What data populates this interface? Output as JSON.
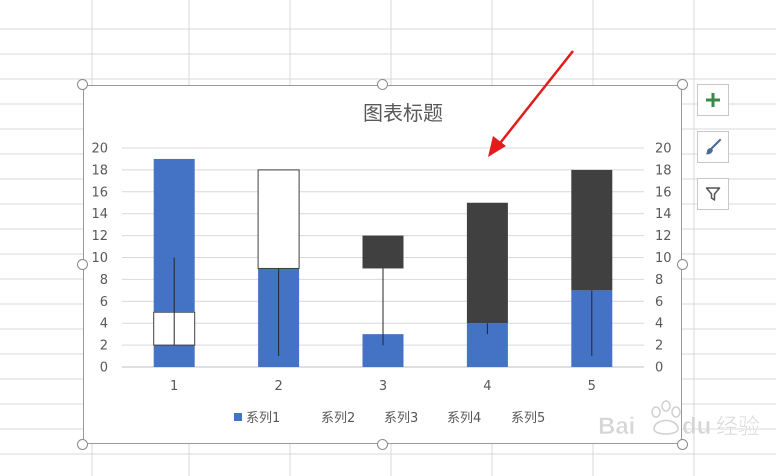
{
  "chart_data": {
    "type": "bar",
    "subtype": "stacked-with-error-bars",
    "title": "图表标题",
    "categories": [
      "1",
      "2",
      "3",
      "4",
      "5"
    ],
    "ylim": [
      0,
      20
    ],
    "yticks": [
      "0",
      "2",
      "4",
      "6",
      "8",
      "10",
      "12",
      "14",
      "16",
      "18",
      "20"
    ],
    "secondary_axis": true,
    "grid": true,
    "legend": {
      "placement": "bottom",
      "entries": [
        "系列1",
        "系列2",
        "系列3",
        "系列4",
        "系列5"
      ],
      "visible_swatch": [
        "系列1"
      ]
    },
    "series_colors": {
      "blue": "#4472c4",
      "white": "#ffffff",
      "dark": "#404040"
    },
    "bars": [
      {
        "category": "1",
        "segments": [
          {
            "from": 0,
            "to": 2,
            "color": "blue"
          },
          {
            "from": 2,
            "to": 5,
            "color": "white"
          },
          {
            "from": 5,
            "to": 19,
            "color": "blue"
          }
        ],
        "whisker": [
          2,
          10
        ]
      },
      {
        "category": "2",
        "segments": [
          {
            "from": 0,
            "to": 9,
            "color": "blue"
          },
          {
            "from": 9,
            "to": 18,
            "color": "white"
          }
        ],
        "whisker": [
          1,
          9
        ]
      },
      {
        "category": "3",
        "segments": [
          {
            "from": 0,
            "to": 3,
            "color": "blue"
          },
          {
            "from": 9,
            "to": 12,
            "color": "dark"
          }
        ],
        "whisker": [
          2,
          9
        ]
      },
      {
        "category": "4",
        "segments": [
          {
            "from": 0,
            "to": 4,
            "color": "blue"
          },
          {
            "from": 4,
            "to": 15,
            "color": "dark"
          }
        ],
        "whisker": [
          3,
          4
        ]
      },
      {
        "category": "5",
        "segments": [
          {
            "from": 0,
            "to": 7,
            "color": "blue"
          },
          {
            "from": 7,
            "to": 18,
            "color": "dark"
          }
        ],
        "whisker": [
          1,
          7
        ]
      }
    ]
  },
  "side_buttons": [
    {
      "icon": "plus-icon",
      "color": "#3a8a4a"
    },
    {
      "icon": "brush-icon",
      "color": "#4a6a9a"
    },
    {
      "icon": "filter-icon",
      "color": "#555555"
    }
  ],
  "annotation": {
    "color": "#e21b1b"
  },
  "watermark": {
    "text": "Bai du 经验"
  }
}
